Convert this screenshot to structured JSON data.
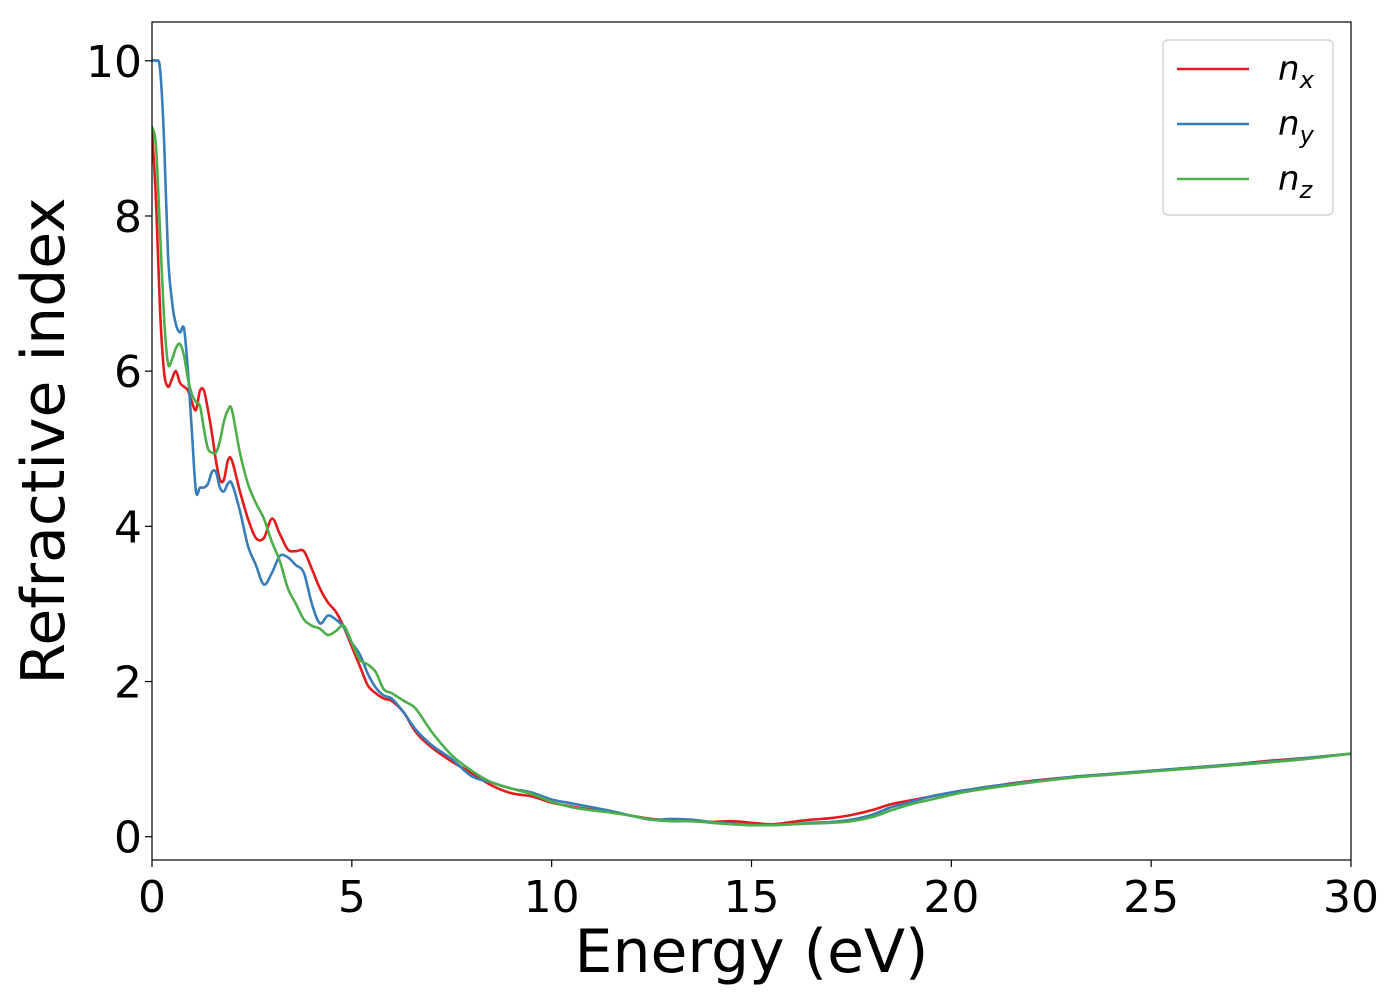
{
  "chart_data": {
    "type": "line",
    "title": "",
    "xlabel": "Energy (eV)",
    "ylabel": "Refractive index",
    "xlim": [
      0,
      30
    ],
    "ylim": [
      -0.3,
      10.5
    ],
    "xticks": [
      0,
      5,
      10,
      15,
      20,
      25,
      30
    ],
    "xtick_labels": [
      "0",
      "5",
      "10",
      "15",
      "20",
      "25",
      "30"
    ],
    "yticks": [
      0,
      2,
      4,
      6,
      8,
      10
    ],
    "ytick_labels": [
      "0",
      "2",
      "4",
      "6",
      "8",
      "10"
    ],
    "grid": false,
    "legend_position": "top-right",
    "series": [
      {
        "name": "n_x",
        "legend": {
          "base": "n",
          "sub": "x"
        },
        "color": "#e41a1c",
        "points": [
          [
            0,
            9.1
          ],
          [
            0.1,
            8.2
          ],
          [
            0.2,
            6.8
          ],
          [
            0.3,
            6.0
          ],
          [
            0.4,
            5.8
          ],
          [
            0.5,
            5.9
          ],
          [
            0.6,
            6.0
          ],
          [
            0.7,
            5.85
          ],
          [
            0.8,
            5.8
          ],
          [
            0.9,
            5.75
          ],
          [
            1.0,
            5.6
          ],
          [
            1.1,
            5.5
          ],
          [
            1.2,
            5.75
          ],
          [
            1.3,
            5.75
          ],
          [
            1.4,
            5.5
          ],
          [
            1.5,
            5.2
          ],
          [
            1.6,
            4.85
          ],
          [
            1.7,
            4.6
          ],
          [
            1.8,
            4.6
          ],
          [
            1.9,
            4.85
          ],
          [
            2.0,
            4.85
          ],
          [
            2.2,
            4.45
          ],
          [
            2.4,
            4.1
          ],
          [
            2.6,
            3.85
          ],
          [
            2.8,
            3.85
          ],
          [
            3.0,
            4.1
          ],
          [
            3.2,
            3.9
          ],
          [
            3.4,
            3.7
          ],
          [
            3.6,
            3.68
          ],
          [
            3.8,
            3.68
          ],
          [
            4.0,
            3.45
          ],
          [
            4.2,
            3.2
          ],
          [
            4.4,
            3.02
          ],
          [
            4.6,
            2.9
          ],
          [
            4.8,
            2.7
          ],
          [
            5.0,
            2.45
          ],
          [
            5.2,
            2.2
          ],
          [
            5.4,
            1.95
          ],
          [
            5.6,
            1.85
          ],
          [
            5.8,
            1.78
          ],
          [
            6.0,
            1.75
          ],
          [
            6.3,
            1.6
          ],
          [
            6.6,
            1.35
          ],
          [
            7.0,
            1.15
          ],
          [
            7.5,
            0.97
          ],
          [
            8.0,
            0.82
          ],
          [
            8.5,
            0.66
          ],
          [
            9.0,
            0.56
          ],
          [
            9.5,
            0.52
          ],
          [
            10.0,
            0.44
          ],
          [
            10.5,
            0.39
          ],
          [
            11.0,
            0.35
          ],
          [
            11.5,
            0.32
          ],
          [
            12.0,
            0.27
          ],
          [
            12.5,
            0.23
          ],
          [
            13.0,
            0.21
          ],
          [
            13.5,
            0.2
          ],
          [
            14.0,
            0.19
          ],
          [
            14.5,
            0.2
          ],
          [
            15.0,
            0.18
          ],
          [
            15.5,
            0.16
          ],
          [
            16.0,
            0.19
          ],
          [
            16.5,
            0.22
          ],
          [
            17.0,
            0.24
          ],
          [
            17.5,
            0.28
          ],
          [
            18.0,
            0.34
          ],
          [
            18.5,
            0.42
          ],
          [
            19.0,
            0.47
          ],
          [
            19.5,
            0.52
          ],
          [
            20.0,
            0.57
          ],
          [
            20.5,
            0.61
          ],
          [
            21.0,
            0.65
          ],
          [
            22.0,
            0.72
          ],
          [
            23.0,
            0.77
          ],
          [
            24.0,
            0.81
          ],
          [
            25.0,
            0.85
          ],
          [
            26.0,
            0.89
          ],
          [
            27.0,
            0.93
          ],
          [
            28.0,
            0.98
          ],
          [
            29.0,
            1.02
          ],
          [
            30.0,
            1.07
          ]
        ]
      },
      {
        "name": "n_y",
        "legend": {
          "base": "n",
          "sub": "y"
        },
        "color": "#377eb8",
        "points": [
          [
            0,
            10.0
          ],
          [
            0.1,
            10.0
          ],
          [
            0.2,
            9.9
          ],
          [
            0.3,
            9.0
          ],
          [
            0.4,
            7.5
          ],
          [
            0.5,
            6.9
          ],
          [
            0.6,
            6.6
          ],
          [
            0.7,
            6.5
          ],
          [
            0.8,
            6.55
          ],
          [
            0.9,
            6.0
          ],
          [
            1.0,
            5.2
          ],
          [
            1.1,
            4.45
          ],
          [
            1.2,
            4.5
          ],
          [
            1.3,
            4.5
          ],
          [
            1.4,
            4.55
          ],
          [
            1.5,
            4.7
          ],
          [
            1.6,
            4.7
          ],
          [
            1.7,
            4.5
          ],
          [
            1.8,
            4.45
          ],
          [
            1.9,
            4.55
          ],
          [
            2.0,
            4.55
          ],
          [
            2.2,
            4.2
          ],
          [
            2.4,
            3.75
          ],
          [
            2.6,
            3.5
          ],
          [
            2.8,
            3.25
          ],
          [
            3.0,
            3.4
          ],
          [
            3.2,
            3.62
          ],
          [
            3.4,
            3.6
          ],
          [
            3.6,
            3.5
          ],
          [
            3.8,
            3.4
          ],
          [
            4.0,
            3.0
          ],
          [
            4.2,
            2.75
          ],
          [
            4.4,
            2.85
          ],
          [
            4.6,
            2.8
          ],
          [
            4.8,
            2.7
          ],
          [
            5.0,
            2.5
          ],
          [
            5.2,
            2.35
          ],
          [
            5.4,
            2.1
          ],
          [
            5.6,
            1.92
          ],
          [
            5.8,
            1.82
          ],
          [
            6.0,
            1.78
          ],
          [
            6.3,
            1.6
          ],
          [
            6.6,
            1.38
          ],
          [
            7.0,
            1.18
          ],
          [
            7.5,
            1.0
          ],
          [
            8.0,
            0.78
          ],
          [
            8.5,
            0.7
          ],
          [
            9.0,
            0.62
          ],
          [
            9.5,
            0.57
          ],
          [
            10.0,
            0.48
          ],
          [
            10.5,
            0.43
          ],
          [
            11.0,
            0.38
          ],
          [
            11.5,
            0.33
          ],
          [
            12.0,
            0.27
          ],
          [
            12.5,
            0.22
          ],
          [
            13.0,
            0.23
          ],
          [
            13.5,
            0.22
          ],
          [
            14.0,
            0.19
          ],
          [
            14.5,
            0.17
          ],
          [
            15.0,
            0.15
          ],
          [
            15.5,
            0.15
          ],
          [
            16.0,
            0.16
          ],
          [
            16.5,
            0.18
          ],
          [
            17.0,
            0.19
          ],
          [
            17.5,
            0.22
          ],
          [
            18.0,
            0.28
          ],
          [
            18.5,
            0.38
          ],
          [
            19.0,
            0.45
          ],
          [
            19.5,
            0.52
          ],
          [
            20.0,
            0.57
          ],
          [
            20.5,
            0.61
          ],
          [
            21.0,
            0.65
          ],
          [
            22.0,
            0.71
          ],
          [
            23.0,
            0.77
          ],
          [
            24.0,
            0.81
          ],
          [
            25.0,
            0.85
          ],
          [
            26.0,
            0.89
          ],
          [
            27.0,
            0.93
          ],
          [
            28.0,
            0.97
          ],
          [
            29.0,
            1.02
          ],
          [
            30.0,
            1.07
          ]
        ]
      },
      {
        "name": "n_z",
        "legend": {
          "base": "n",
          "sub": "z"
        },
        "color": "#4daf4a",
        "points": [
          [
            0,
            9.15
          ],
          [
            0.1,
            8.9
          ],
          [
            0.2,
            7.8
          ],
          [
            0.3,
            6.7
          ],
          [
            0.4,
            6.1
          ],
          [
            0.5,
            6.15
          ],
          [
            0.6,
            6.3
          ],
          [
            0.7,
            6.35
          ],
          [
            0.8,
            6.2
          ],
          [
            0.9,
            5.9
          ],
          [
            1.0,
            5.7
          ],
          [
            1.1,
            5.6
          ],
          [
            1.2,
            5.55
          ],
          [
            1.3,
            5.25
          ],
          [
            1.4,
            5.0
          ],
          [
            1.5,
            4.95
          ],
          [
            1.6,
            4.95
          ],
          [
            1.7,
            5.1
          ],
          [
            1.8,
            5.35
          ],
          [
            1.9,
            5.5
          ],
          [
            2.0,
            5.5
          ],
          [
            2.2,
            4.95
          ],
          [
            2.4,
            4.55
          ],
          [
            2.6,
            4.3
          ],
          [
            2.8,
            4.1
          ],
          [
            3.0,
            3.8
          ],
          [
            3.2,
            3.55
          ],
          [
            3.4,
            3.2
          ],
          [
            3.6,
            3.0
          ],
          [
            3.8,
            2.8
          ],
          [
            4.0,
            2.72
          ],
          [
            4.2,
            2.68
          ],
          [
            4.4,
            2.6
          ],
          [
            4.6,
            2.65
          ],
          [
            4.8,
            2.72
          ],
          [
            5.0,
            2.5
          ],
          [
            5.2,
            2.28
          ],
          [
            5.4,
            2.22
          ],
          [
            5.6,
            2.12
          ],
          [
            5.8,
            1.9
          ],
          [
            6.0,
            1.85
          ],
          [
            6.3,
            1.75
          ],
          [
            6.6,
            1.65
          ],
          [
            7.0,
            1.35
          ],
          [
            7.5,
            1.05
          ],
          [
            8.0,
            0.85
          ],
          [
            8.5,
            0.7
          ],
          [
            9.0,
            0.62
          ],
          [
            9.5,
            0.55
          ],
          [
            10.0,
            0.45
          ],
          [
            10.5,
            0.38
          ],
          [
            11.0,
            0.34
          ],
          [
            11.5,
            0.31
          ],
          [
            12.0,
            0.27
          ],
          [
            12.5,
            0.22
          ],
          [
            13.0,
            0.2
          ],
          [
            13.5,
            0.2
          ],
          [
            14.0,
            0.18
          ],
          [
            14.5,
            0.16
          ],
          [
            15.0,
            0.15
          ],
          [
            15.5,
            0.15
          ],
          [
            16.0,
            0.16
          ],
          [
            16.5,
            0.17
          ],
          [
            17.0,
            0.18
          ],
          [
            17.5,
            0.2
          ],
          [
            18.0,
            0.25
          ],
          [
            18.5,
            0.34
          ],
          [
            19.0,
            0.42
          ],
          [
            19.5,
            0.48
          ],
          [
            20.0,
            0.54
          ],
          [
            20.5,
            0.59
          ],
          [
            21.0,
            0.63
          ],
          [
            22.0,
            0.7
          ],
          [
            23.0,
            0.76
          ],
          [
            24.0,
            0.8
          ],
          [
            25.0,
            0.84
          ],
          [
            26.0,
            0.88
          ],
          [
            27.0,
            0.92
          ],
          [
            28.0,
            0.96
          ],
          [
            29.0,
            1.01
          ],
          [
            30.0,
            1.07
          ]
        ]
      }
    ]
  }
}
